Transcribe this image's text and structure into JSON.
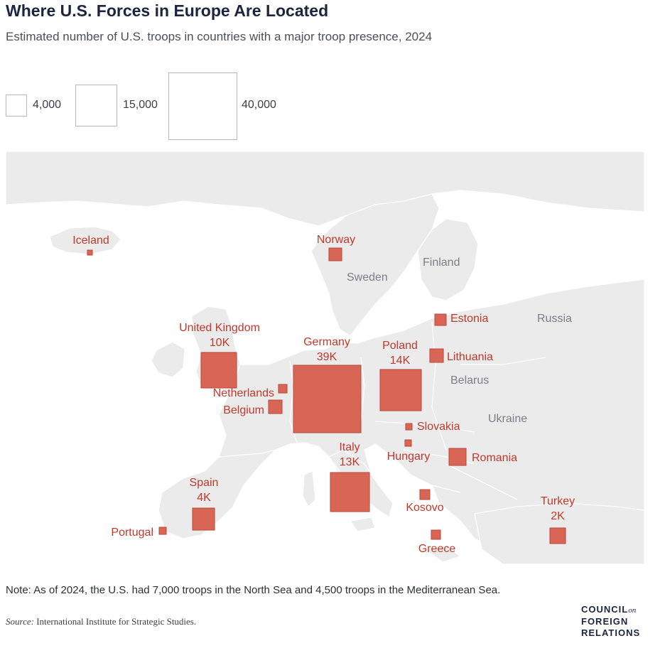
{
  "title": "Where U.S. Forces in Europe Are Located",
  "subtitle": "Estimated number of U.S. troops in countries with a major troop presence, 2024",
  "legend": [
    {
      "label": "4,000",
      "value": 4000
    },
    {
      "label": "15,000",
      "value": 15000
    },
    {
      "label": "40,000",
      "value": 40000
    }
  ],
  "countries": [
    {
      "name": "Iceland",
      "value_label": ""
    },
    {
      "name": "Norway",
      "value_label": ""
    },
    {
      "name": "United Kingdom",
      "value_label": "10K"
    },
    {
      "name": "Germany",
      "value_label": "39K"
    },
    {
      "name": "Poland",
      "value_label": "14K"
    },
    {
      "name": "Estonia",
      "value_label": ""
    },
    {
      "name": "Lithuania",
      "value_label": ""
    },
    {
      "name": "Netherlands",
      "value_label": ""
    },
    {
      "name": "Belgium",
      "value_label": ""
    },
    {
      "name": "Slovakia",
      "value_label": ""
    },
    {
      "name": "Hungary",
      "value_label": ""
    },
    {
      "name": "Italy",
      "value_label": "13K"
    },
    {
      "name": "Romania",
      "value_label": ""
    },
    {
      "name": "Spain",
      "value_label": "4K"
    },
    {
      "name": "Kosovo",
      "value_label": ""
    },
    {
      "name": "Portugal",
      "value_label": ""
    },
    {
      "name": "Greece",
      "value_label": ""
    },
    {
      "name": "Turkey",
      "value_label": "2K"
    }
  ],
  "geo_labels": [
    "Finland",
    "Sweden",
    "Russia",
    "Belarus",
    "Ukraine"
  ],
  "note": "Note: As of 2024, the U.S. had 7,000 troops in the North Sea and 4,500 troops in the Mediterranean Sea.",
  "source_label": "Source:",
  "source_text": "International Institute for Strategic Studies.",
  "logo": {
    "line1": "COUNCIL",
    "on": "on",
    "line2": "FOREIGN",
    "line3": "RELATIONS"
  },
  "colors": {
    "marker": "#d96555",
    "label": "#c0392b",
    "land": "#ebebeb",
    "water": "#ffffff"
  }
}
